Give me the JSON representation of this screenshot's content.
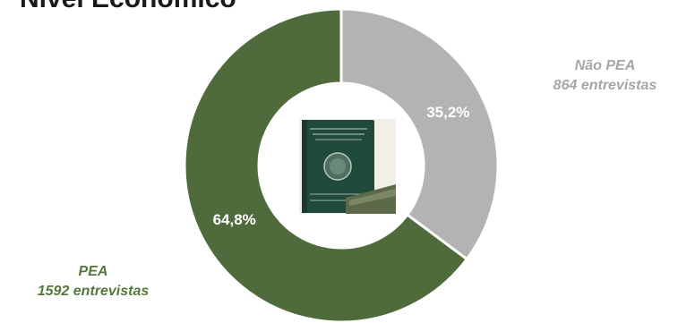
{
  "title": "Nível Econômico",
  "colors": {
    "pea": "#4f6b3b",
    "nao_pea": "#b3b3b3",
    "pea_text": "#56783d",
    "nao_pea_text": "#a6a6a6"
  },
  "chart_data": {
    "type": "pie",
    "donut": true,
    "title": "Nível Econômico",
    "slices": [
      {
        "name": "Não PEA",
        "count_label": "864 entrevistas",
        "value": 35.2,
        "value_label": "35,2%",
        "color": "#b3b3b3"
      },
      {
        "name": "PEA",
        "count_label": "1592 entrevistas",
        "value": 64.8,
        "value_label": "64,8%",
        "color": "#4f6b3b"
      }
    ]
  },
  "center_image": {
    "icon": "work-card-icon",
    "description": "Brazilian work card (Carteira de Trabalho)"
  }
}
